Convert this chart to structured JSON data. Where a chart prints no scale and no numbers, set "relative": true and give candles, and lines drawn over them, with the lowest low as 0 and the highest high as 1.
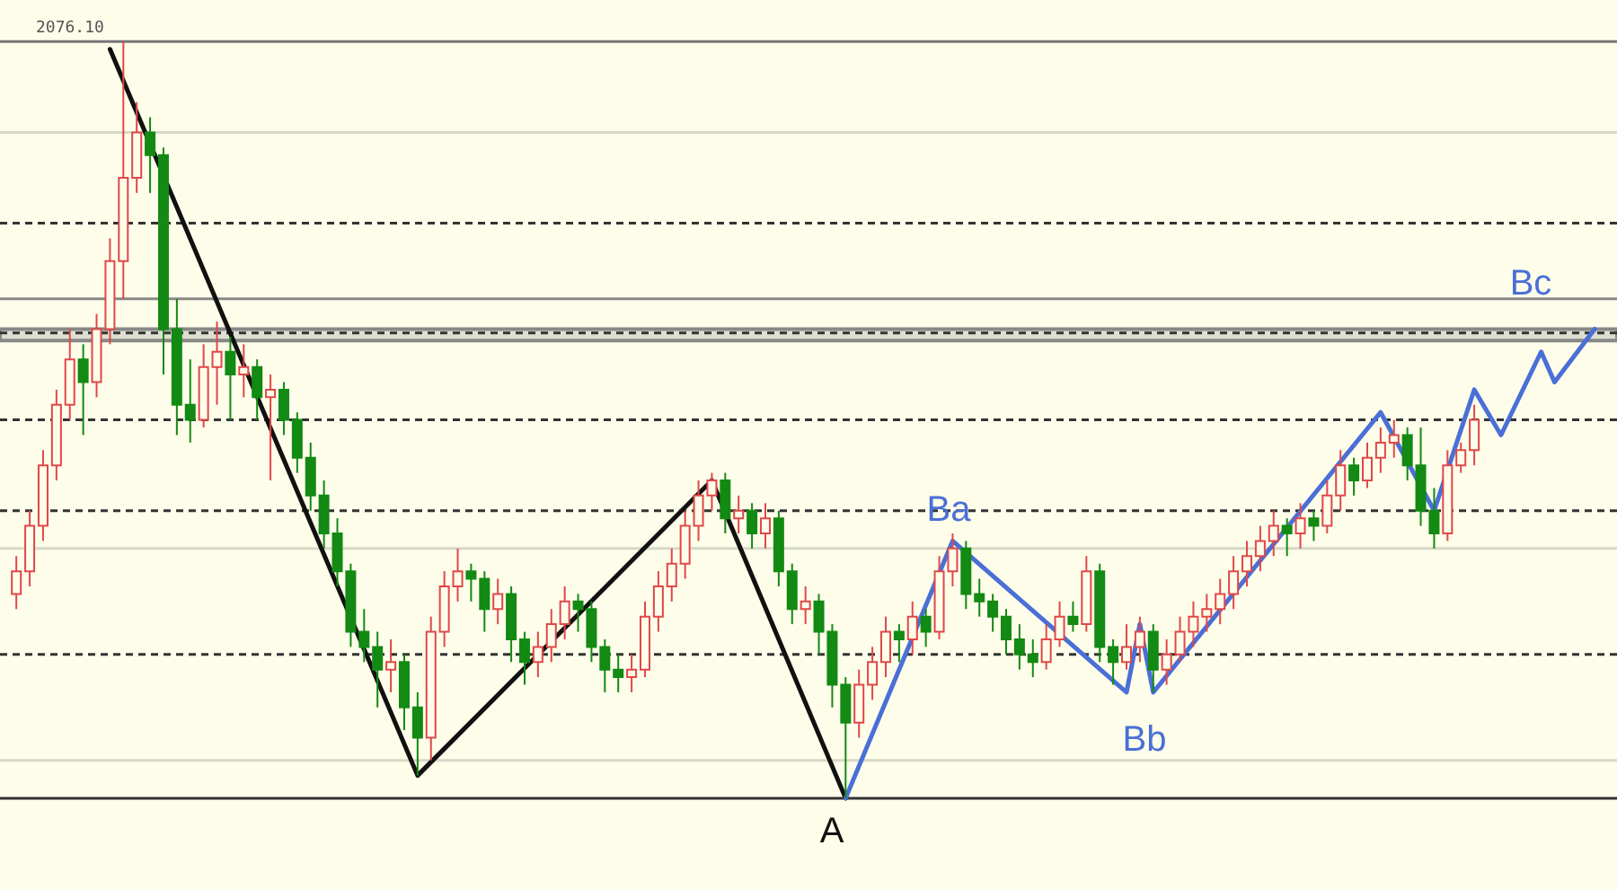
{
  "chart_data": {
    "type": "candlestick",
    "relative": true,
    "categories": [
      null,
      null,
      null,
      null,
      null,
      null,
      null,
      null,
      null,
      null,
      null,
      null,
      null,
      null,
      null,
      null,
      null,
      null,
      null,
      null,
      null,
      null,
      null,
      null,
      null,
      null,
      null,
      null,
      null,
      null,
      null,
      null,
      null,
      null,
      null,
      null,
      null,
      null,
      null,
      null,
      null,
      null,
      null,
      null,
      null,
      null,
      null,
      null,
      null,
      null,
      null,
      null,
      null,
      null,
      null,
      null,
      null,
      null,
      null,
      null,
      null,
      null,
      null,
      null,
      null,
      null,
      null,
      null,
      null,
      null,
      null,
      null,
      null,
      null,
      null,
      null,
      null,
      null,
      null,
      null,
      null,
      null,
      null,
      null,
      null,
      null,
      null,
      null,
      null,
      null,
      null,
      null,
      null,
      null,
      null,
      null,
      null,
      null,
      null,
      null,
      null,
      null,
      null,
      null,
      null,
      null,
      null,
      null,
      null,
      null,
      null,
      null,
      null,
      null,
      null,
      null,
      null,
      null,
      null
    ],
    "ohlc": [
      [
        0.27,
        0.32,
        0.25,
        0.3
      ],
      [
        0.3,
        0.38,
        0.28,
        0.36
      ],
      [
        0.36,
        0.46,
        0.34,
        0.44
      ],
      [
        0.44,
        0.54,
        0.42,
        0.52
      ],
      [
        0.52,
        0.62,
        0.5,
        0.58
      ],
      [
        0.58,
        0.6,
        0.48,
        0.55
      ],
      [
        0.55,
        0.64,
        0.53,
        0.62
      ],
      [
        0.62,
        0.74,
        0.6,
        0.71
      ],
      [
        0.71,
        1,
        0.66,
        0.82
      ],
      [
        0.82,
        0.92,
        0.8,
        0.88
      ],
      [
        0.88,
        0.9,
        0.8,
        0.85
      ],
      [
        0.85,
        0.86,
        0.56,
        0.62
      ],
      [
        0.62,
        0.66,
        0.48,
        0.52
      ],
      [
        0.52,
        0.58,
        0.47,
        0.5
      ],
      [
        0.5,
        0.6,
        0.49,
        0.57
      ],
      [
        0.57,
        0.63,
        0.52,
        0.59
      ],
      [
        0.59,
        0.61,
        0.5,
        0.56
      ],
      [
        0.56,
        0.6,
        0.53,
        0.57
      ],
      [
        0.57,
        0.58,
        0.5,
        0.53
      ],
      [
        0.53,
        0.56,
        0.42,
        0.54
      ],
      [
        0.54,
        0.55,
        0.48,
        0.5
      ],
      [
        0.5,
        0.51,
        0.43,
        0.45
      ],
      [
        0.45,
        0.47,
        0.38,
        0.4
      ],
      [
        0.4,
        0.42,
        0.33,
        0.35
      ],
      [
        0.35,
        0.37,
        0.28,
        0.3
      ],
      [
        0.3,
        0.31,
        0.2,
        0.22
      ],
      [
        0.22,
        0.25,
        0.18,
        0.2
      ],
      [
        0.2,
        0.22,
        0.12,
        0.17
      ],
      [
        0.17,
        0.21,
        0.14,
        0.18
      ],
      [
        0.18,
        0.19,
        0.09,
        0.12
      ],
      [
        0.12,
        0.14,
        0.03,
        0.08
      ],
      [
        0.08,
        0.24,
        0.05,
        0.22
      ],
      [
        0.22,
        0.3,
        0.2,
        0.28
      ],
      [
        0.28,
        0.33,
        0.26,
        0.3
      ],
      [
        0.3,
        0.31,
        0.26,
        0.29
      ],
      [
        0.29,
        0.3,
        0.22,
        0.25
      ],
      [
        0.25,
        0.29,
        0.23,
        0.27
      ],
      [
        0.27,
        0.28,
        0.18,
        0.21
      ],
      [
        0.21,
        0.22,
        0.15,
        0.18
      ],
      [
        0.18,
        0.22,
        0.16,
        0.2
      ],
      [
        0.2,
        0.25,
        0.18,
        0.23
      ],
      [
        0.23,
        0.28,
        0.21,
        0.26
      ],
      [
        0.26,
        0.27,
        0.22,
        0.25
      ],
      [
        0.25,
        0.26,
        0.18,
        0.2
      ],
      [
        0.2,
        0.21,
        0.14,
        0.17
      ],
      [
        0.17,
        0.19,
        0.14,
        0.16
      ],
      [
        0.16,
        0.19,
        0.14,
        0.17
      ],
      [
        0.17,
        0.26,
        0.16,
        0.24
      ],
      [
        0.24,
        0.3,
        0.22,
        0.28
      ],
      [
        0.28,
        0.33,
        0.26,
        0.31
      ],
      [
        0.31,
        0.38,
        0.29,
        0.36
      ],
      [
        0.36,
        0.42,
        0.34,
        0.4
      ],
      [
        0.4,
        0.43,
        0.38,
        0.42
      ],
      [
        0.42,
        0.43,
        0.35,
        0.37
      ],
      [
        0.37,
        0.4,
        0.35,
        0.38
      ],
      [
        0.38,
        0.39,
        0.33,
        0.35
      ],
      [
        0.35,
        0.39,
        0.33,
        0.37
      ],
      [
        0.37,
        0.38,
        0.28,
        0.3
      ],
      [
        0.3,
        0.31,
        0.23,
        0.25
      ],
      [
        0.25,
        0.28,
        0.23,
        0.26
      ],
      [
        0.26,
        0.27,
        0.19,
        0.22
      ],
      [
        0.22,
        0.23,
        0.12,
        0.15
      ],
      [
        0.15,
        0.16,
        0,
        0.1
      ],
      [
        0.1,
        0.17,
        0.08,
        0.15
      ],
      [
        0.15,
        0.2,
        0.13,
        0.18
      ],
      [
        0.18,
        0.24,
        0.16,
        0.22
      ],
      [
        0.22,
        0.23,
        0.18,
        0.21
      ],
      [
        0.21,
        0.26,
        0.19,
        0.24
      ],
      [
        0.24,
        0.25,
        0.2,
        0.22
      ],
      [
        0.22,
        0.32,
        0.21,
        0.3
      ],
      [
        0.3,
        0.35,
        0.28,
        0.33
      ],
      [
        0.33,
        0.34,
        0.25,
        0.27
      ],
      [
        0.27,
        0.29,
        0.24,
        0.26
      ],
      [
        0.26,
        0.27,
        0.22,
        0.24
      ],
      [
        0.24,
        0.25,
        0.19,
        0.21
      ],
      [
        0.21,
        0.23,
        0.17,
        0.19
      ],
      [
        0.19,
        0.21,
        0.16,
        0.18
      ],
      [
        0.18,
        0.23,
        0.17,
        0.21
      ],
      [
        0.21,
        0.26,
        0.2,
        0.24
      ],
      [
        0.24,
        0.26,
        0.22,
        0.23
      ],
      [
        0.23,
        0.32,
        0.22,
        0.3
      ],
      [
        0.3,
        0.31,
        0.18,
        0.2
      ],
      [
        0.2,
        0.21,
        0.15,
        0.18
      ],
      [
        0.18,
        0.23,
        0.17,
        0.2
      ],
      [
        0.2,
        0.24,
        0.18,
        0.22
      ],
      [
        0.22,
        0.23,
        0.14,
        0.17
      ],
      [
        0.17,
        0.21,
        0.15,
        0.19
      ],
      [
        0.19,
        0.24,
        0.18,
        0.22
      ],
      [
        0.22,
        0.26,
        0.2,
        0.24
      ],
      [
        0.24,
        0.27,
        0.22,
        0.25
      ],
      [
        0.25,
        0.29,
        0.23,
        0.27
      ],
      [
        0.27,
        0.32,
        0.25,
        0.3
      ],
      [
        0.3,
        0.34,
        0.28,
        0.32
      ],
      [
        0.32,
        0.36,
        0.3,
        0.34
      ],
      [
        0.34,
        0.38,
        0.32,
        0.36
      ],
      [
        0.36,
        0.37,
        0.32,
        0.35
      ],
      [
        0.35,
        0.39,
        0.33,
        0.37
      ],
      [
        0.37,
        0.38,
        0.34,
        0.36
      ],
      [
        0.36,
        0.42,
        0.35,
        0.4
      ],
      [
        0.4,
        0.46,
        0.38,
        0.44
      ],
      [
        0.44,
        0.45,
        0.4,
        0.42
      ],
      [
        0.42,
        0.47,
        0.41,
        0.45
      ],
      [
        0.45,
        0.49,
        0.43,
        0.47
      ],
      [
        0.47,
        0.5,
        0.45,
        0.48
      ],
      [
        0.48,
        0.49,
        0.42,
        0.44
      ],
      [
        0.44,
        0.49,
        0.36,
        0.38
      ],
      [
        0.38,
        0.41,
        0.33,
        0.35
      ],
      [
        0.35,
        0.46,
        0.34,
        0.44
      ],
      [
        0.44,
        0.47,
        0.43,
        0.46
      ],
      [
        0.46,
        0.52,
        0.44,
        0.5
      ],
      null,
      null,
      null,
      null,
      null,
      null,
      null,
      null,
      null
    ],
    "series": [
      {
        "type": "line",
        "color": "#111111",
        "values": [
          null,
          null,
          null,
          null,
          null,
          null,
          null,
          0.99,
          null,
          null,
          null,
          null,
          null,
          null,
          null,
          null,
          null,
          null,
          null,
          null,
          null,
          null,
          null,
          null,
          null,
          null,
          null,
          null,
          null,
          null,
          0.03,
          null,
          null,
          null,
          null,
          null,
          null,
          null,
          null,
          null,
          null,
          null,
          null,
          null,
          null,
          null,
          null,
          null,
          null,
          null,
          null,
          null,
          0.42,
          null,
          null,
          null,
          null,
          null,
          null,
          null,
          null,
          null,
          0,
          null,
          null,
          null,
          null,
          null,
          null,
          null,
          null,
          null,
          null,
          null,
          null,
          null,
          null,
          null,
          null,
          null,
          null,
          null,
          null,
          null,
          null,
          null,
          null,
          null,
          null,
          null,
          null,
          null,
          null,
          null,
          null,
          null,
          null,
          null,
          null,
          null,
          null,
          null,
          null,
          null,
          null,
          null,
          null,
          null,
          null,
          null,
          null,
          null,
          null,
          null,
          null,
          null,
          null,
          null,
          null
        ]
      },
      {
        "type": "line",
        "color": "#4a6fd6",
        "values": [
          null,
          null,
          null,
          null,
          null,
          null,
          null,
          null,
          null,
          null,
          null,
          null,
          null,
          null,
          null,
          null,
          null,
          null,
          null,
          null,
          null,
          null,
          null,
          null,
          null,
          null,
          null,
          null,
          null,
          null,
          null,
          null,
          null,
          null,
          null,
          null,
          null,
          null,
          null,
          null,
          null,
          null,
          null,
          null,
          null,
          null,
          null,
          null,
          null,
          null,
          null,
          null,
          null,
          null,
          null,
          null,
          null,
          null,
          null,
          null,
          null,
          null,
          0,
          null,
          null,
          null,
          null,
          null,
          null,
          null,
          0.34,
          null,
          null,
          null,
          null,
          null,
          null,
          null,
          null,
          null,
          null,
          null,
          null,
          0.14,
          0.23,
          0.14,
          null,
          null,
          null,
          null,
          null,
          null,
          null,
          null,
          null,
          null,
          null,
          null,
          null,
          null,
          null,
          null,
          0.51,
          null,
          null,
          null,
          0.38,
          null,
          null,
          0.54,
          null,
          0.48,
          null,
          null,
          0.59,
          0.55,
          null,
          null,
          0.62
        ]
      }
    ],
    "ref_lines": [
      {
        "axis": "y",
        "value": 1,
        "color": "#777777",
        "line_style": "solid"
      },
      {
        "axis": "y",
        "value": 0.66,
        "color": "#888888",
        "line_style": "solid"
      },
      {
        "axis": "y",
        "value": 0.76,
        "color": "#333333",
        "line_style": "dashed"
      },
      {
        "axis": "y",
        "value": 0.615,
        "color": "#333333",
        "line_style": "dashed"
      },
      {
        "axis": "y",
        "value": 0.5,
        "color": "#333333",
        "line_style": "dashed"
      },
      {
        "axis": "y",
        "value": 0.38,
        "color": "#333333",
        "line_style": "dashed"
      },
      {
        "axis": "y",
        "value": 0.19,
        "color": "#333333",
        "line_style": "dashed"
      },
      {
        "axis": "y",
        "value": 0.88,
        "color": "#d8d8c8",
        "line_style": "solid"
      },
      {
        "axis": "y",
        "value": 0.33,
        "color": "#d8d8c8",
        "line_style": "solid"
      },
      {
        "axis": "y",
        "value": 0.05,
        "color": "#d8d8c8",
        "line_style": "solid"
      },
      {
        "axis": "y",
        "value": 0,
        "color": "#333333",
        "line_style": "solid"
      }
    ],
    "bands": [
      {
        "axis": "y",
        "from": 0.605,
        "to": 0.62,
        "color": "#888888"
      }
    ],
    "annotations": [
      "2076.10",
      "A",
      "Ba",
      "Bb",
      "Bc"
    ]
  }
}
